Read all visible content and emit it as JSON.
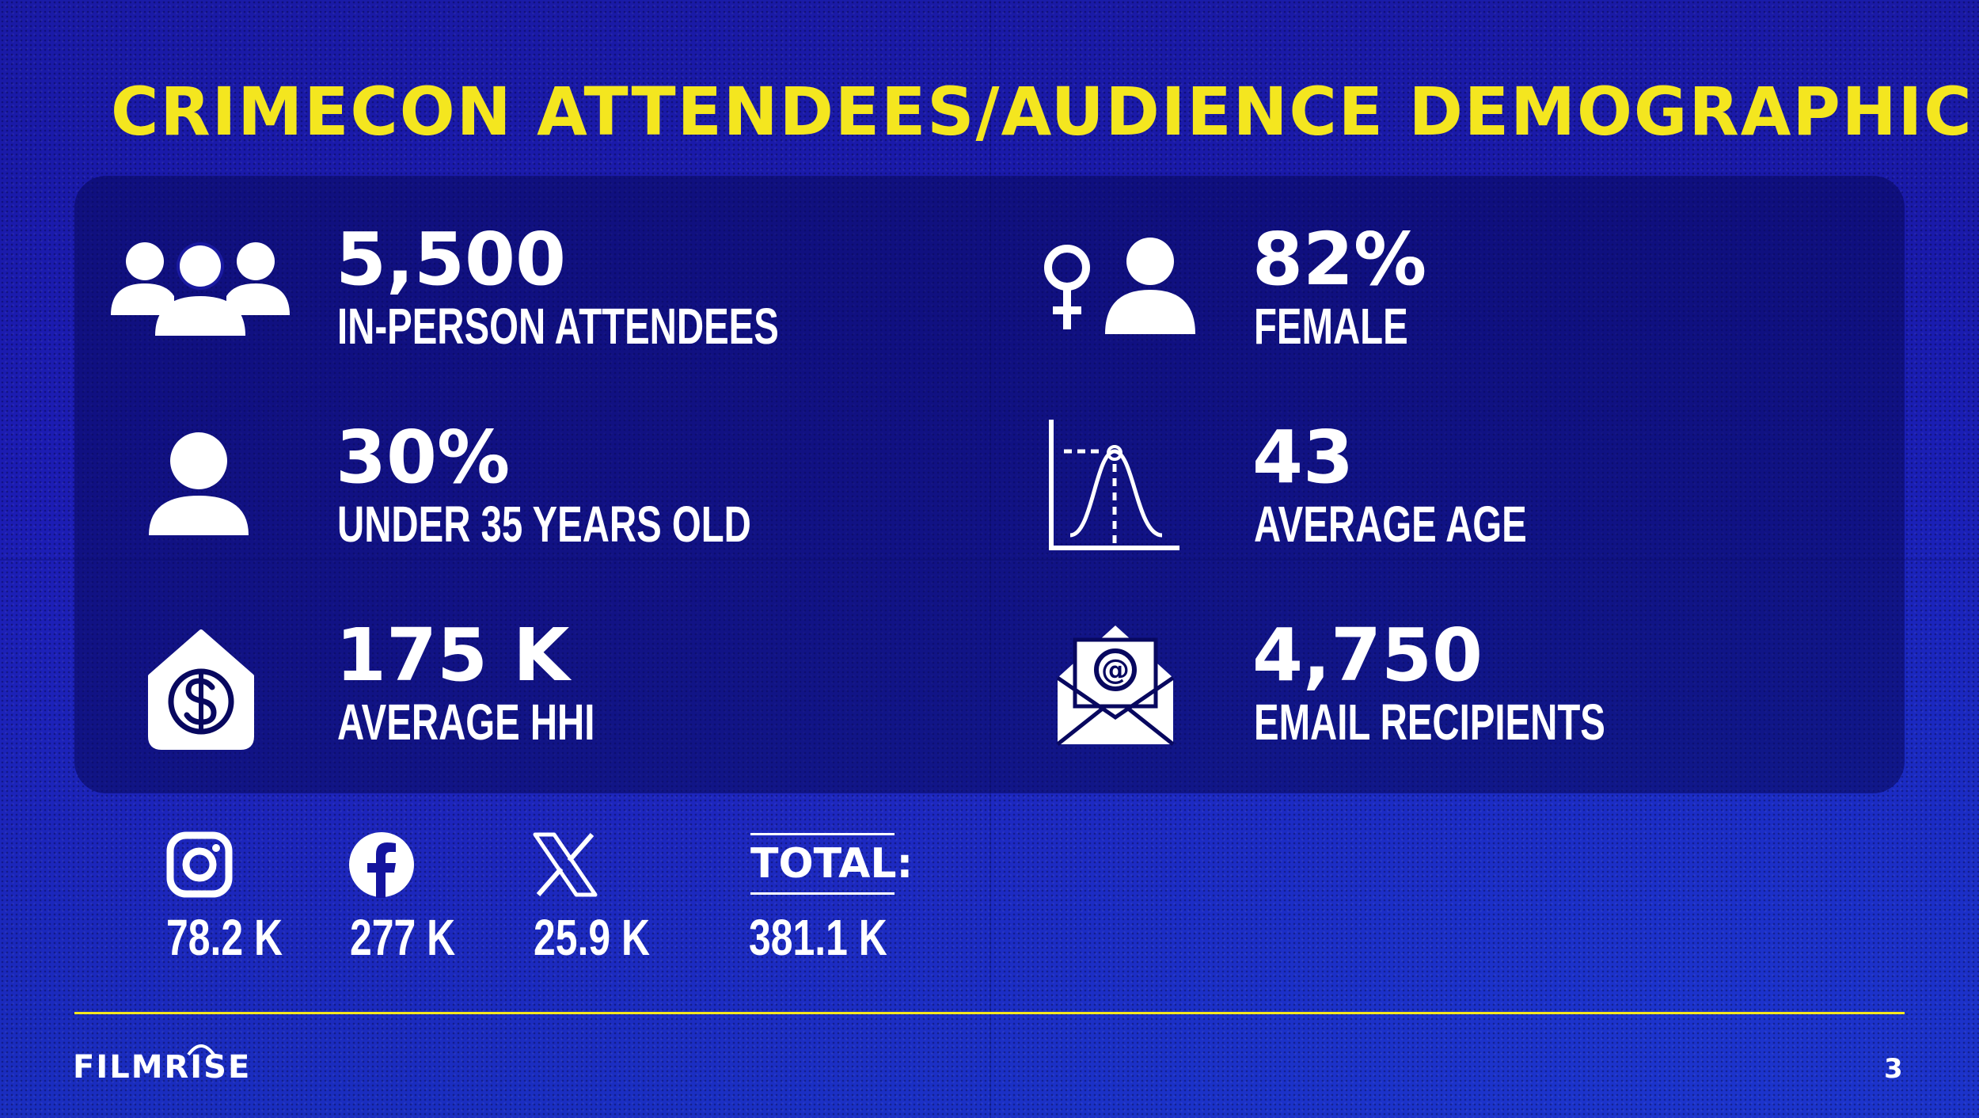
{
  "title": "CRIMECON ATTENDEES/AUDIENCE DEMOGRAPHICS",
  "stats": [
    {
      "icon": "group-people-icon",
      "value": "5,500",
      "label": "IN-PERSON ATTENDEES"
    },
    {
      "icon": "female-person-icon",
      "value": "82%",
      "label": "FEMALE"
    },
    {
      "icon": "person-icon",
      "value": "30%",
      "label": "UNDER 35 YEARS OLD"
    },
    {
      "icon": "bell-curve-chart-icon",
      "value": "43",
      "label": "AVERAGE AGE"
    },
    {
      "icon": "house-dollar-icon",
      "value": "175 K",
      "label": "AVERAGE HHI"
    },
    {
      "icon": "email-envelope-icon",
      "value": "4,750",
      "label": "EMAIL RECIPIENTS"
    }
  ],
  "social": {
    "instagram": {
      "icon": "instagram-icon",
      "value": "78.2 K"
    },
    "facebook": {
      "icon": "facebook-icon",
      "value": "277 K"
    },
    "x": {
      "icon": "x-logo-icon",
      "value": "25.9 K"
    },
    "total": {
      "label": "TOTAL:",
      "value": "381.1 K"
    }
  },
  "footer": {
    "logo": "FILMRISE",
    "page_number": "3"
  },
  "colors": {
    "accent_yellow": "#f4e61f",
    "background_blue": "#1a1ab0",
    "panel_navy": "#08085f",
    "text_white": "#ffffff"
  }
}
